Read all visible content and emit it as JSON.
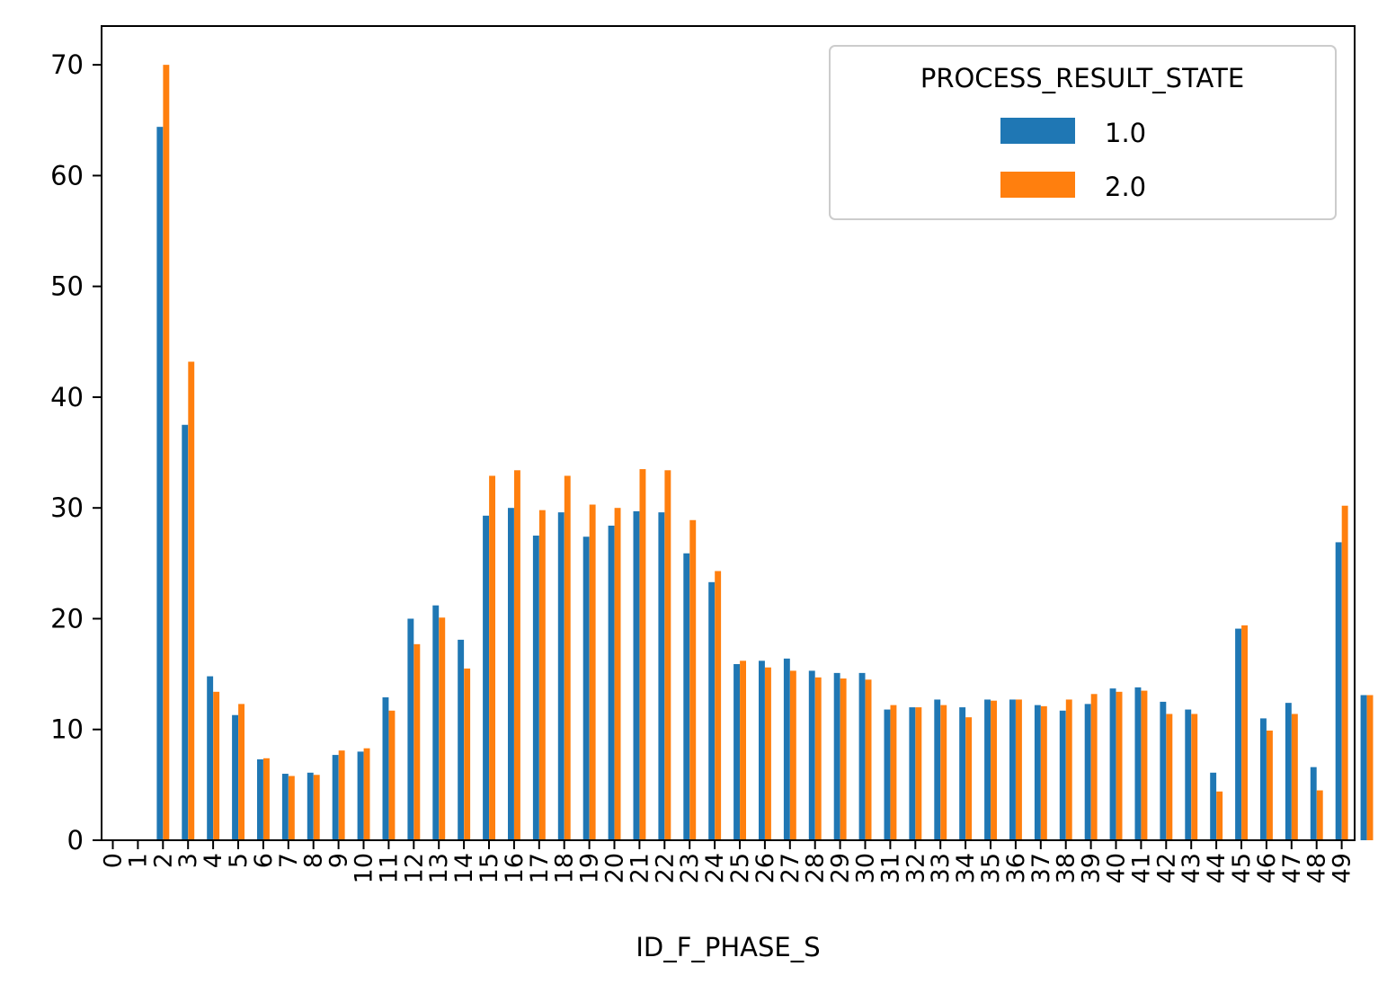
{
  "chart_data": {
    "type": "bar",
    "xlabel": "ID_F_PHASE_S",
    "ylabel": "",
    "ylim": [
      0,
      73.5
    ],
    "yticks": [
      0,
      10,
      20,
      30,
      40,
      50,
      60,
      70
    ],
    "grid": false,
    "legend": {
      "title": "PROCESS_RESULT_STATE",
      "placement": "top-right"
    },
    "categories": [
      "0",
      "1",
      "2",
      "3",
      "4",
      "5",
      "6",
      "7",
      "8",
      "9",
      "10",
      "11",
      "12",
      "13",
      "14",
      "15",
      "16",
      "17",
      "18",
      "19",
      "20",
      "21",
      "22",
      "23",
      "24",
      "25",
      "26",
      "27",
      "28",
      "29",
      "30",
      "31",
      "32",
      "33",
      "34",
      "35",
      "36",
      "37",
      "38",
      "39",
      "40",
      "41",
      "42",
      "43",
      "44",
      "45",
      "46",
      "47",
      "48",
      "49"
    ],
    "series": [
      {
        "name": "1.0",
        "color": "#1f77b4",
        "values": [
          0,
          64.4,
          37.5,
          14.8,
          11.3,
          7.3,
          6.0,
          6.1,
          7.7,
          8.0,
          12.9,
          20.0,
          21.2,
          18.1,
          29.3,
          30.0,
          27.5,
          29.6,
          27.4,
          28.4,
          29.7,
          29.6,
          25.9,
          23.3,
          15.9,
          16.2,
          16.4,
          15.3,
          15.1,
          15.1,
          11.8,
          12.0,
          12.7,
          12.0,
          12.7,
          12.7,
          12.2,
          11.7,
          12.3,
          13.7,
          13.8,
          12.5,
          11.8,
          6.1,
          19.1,
          11.0,
          12.4,
          6.6,
          26.9,
          13.1
        ]
      },
      {
        "name": "2.0",
        "color": "#ff7f0e",
        "values": [
          0,
          70.0,
          43.2,
          13.4,
          12.3,
          7.4,
          5.8,
          5.9,
          8.1,
          8.3,
          11.7,
          17.7,
          20.1,
          15.5,
          32.9,
          33.4,
          29.8,
          32.9,
          30.3,
          30.0,
          33.5,
          33.4,
          28.9,
          24.3,
          16.2,
          15.6,
          15.3,
          14.7,
          14.6,
          14.5,
          12.2,
          12.0,
          12.2,
          11.1,
          12.6,
          12.7,
          12.1,
          12.7,
          13.2,
          13.4,
          13.5,
          11.4,
          11.4,
          4.4,
          19.4,
          9.9,
          11.4,
          4.5,
          30.2,
          13.1
        ]
      }
    ]
  }
}
